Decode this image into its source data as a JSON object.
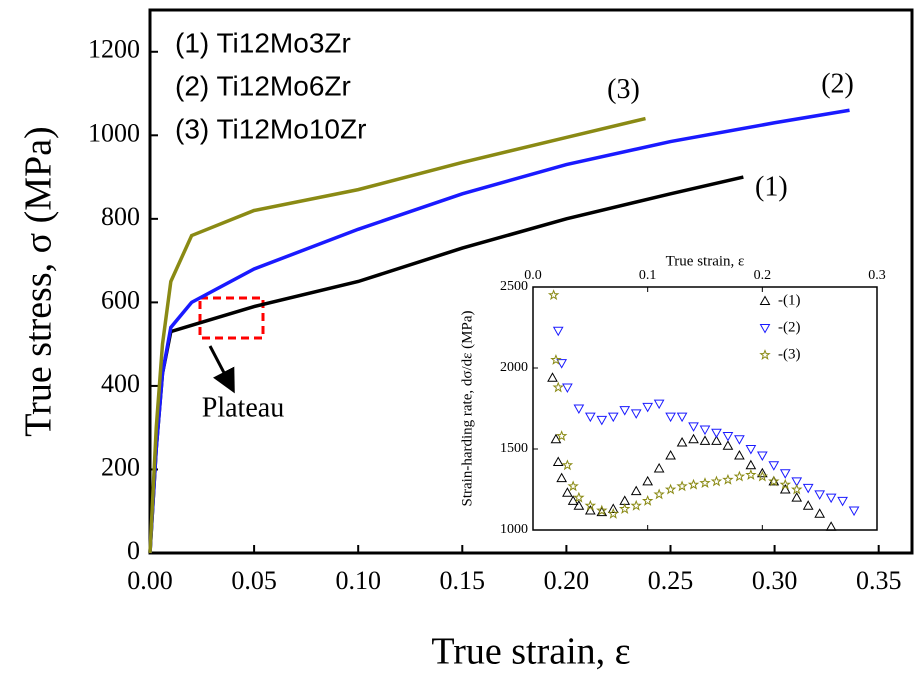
{
  "chart_data": [
    {
      "type": "line",
      "x_label": "True strain, ε",
      "y_label": "True stress, σ (MPa)",
      "xlim": [
        0,
        0.366
      ],
      "ylim": [
        0,
        1300
      ],
      "xticks": [
        {
          "value": 0,
          "label": "0.00"
        },
        {
          "value": 0.05,
          "label": "0.05"
        },
        {
          "value": 0.1,
          "label": "0.10"
        },
        {
          "value": 0.15,
          "label": "0.15"
        },
        {
          "value": 0.2,
          "label": "0.20"
        },
        {
          "value": 0.25,
          "label": "0.25"
        },
        {
          "value": 0.3,
          "label": "0.30"
        },
        {
          "value": 0.35,
          "label": "0.35"
        }
      ],
      "yticks": [
        0,
        200,
        400,
        600,
        800,
        1000,
        1200
      ],
      "series": [
        {
          "name": "(1) Ti12Mo3Zr",
          "label": "(1)",
          "color": "#000000",
          "x": [
            0,
            0.003,
            0.006,
            0.01,
            0.02,
            0.05,
            0.1,
            0.15,
            0.2,
            0.25,
            0.285
          ],
          "values": [
            0,
            250,
            430,
            530,
            545,
            590,
            650,
            730,
            800,
            860,
            900
          ]
        },
        {
          "name": "(2) Ti12Mo6Zr",
          "label": "(2)",
          "color": "#1a1aff",
          "x": [
            0,
            0.003,
            0.006,
            0.01,
            0.02,
            0.05,
            0.1,
            0.15,
            0.2,
            0.25,
            0.3,
            0.336
          ],
          "values": [
            0,
            250,
            430,
            540,
            600,
            680,
            775,
            860,
            930,
            985,
            1030,
            1060
          ]
        },
        {
          "name": "(3) Ti12Mo10Zr",
          "label": "(3)",
          "color": "#8a8a14",
          "x": [
            0,
            0.003,
            0.006,
            0.01,
            0.02,
            0.05,
            0.1,
            0.15,
            0.2,
            0.238
          ],
          "values": [
            0,
            300,
            500,
            650,
            760,
            820,
            870,
            935,
            995,
            1040
          ]
        }
      ],
      "annotations": [
        "Plateau"
      ]
    },
    {
      "type": "scatter",
      "x_label": "True strain, ε",
      "y_label": "Strain-harding rate, dσ/dε (MPa)",
      "xlim": [
        0,
        0.3
      ],
      "ylim": [
        1000,
        2500
      ],
      "xticks": [
        {
          "value": 0,
          "label": "0.0"
        },
        {
          "value": 0.1,
          "label": "0.1"
        },
        {
          "value": 0.2,
          "label": "0.2"
        },
        {
          "value": 0.3,
          "label": "0.3"
        }
      ],
      "yticks": [
        1000,
        1500,
        2000,
        2500
      ],
      "series": [
        {
          "name": "-(1)",
          "marker": "triangle-up",
          "color": "#000000",
          "x": [
            0.017,
            0.02,
            0.022,
            0.025,
            0.03,
            0.035,
            0.04,
            0.05,
            0.06,
            0.07,
            0.08,
            0.09,
            0.1,
            0.11,
            0.12,
            0.13,
            0.14,
            0.15,
            0.16,
            0.17,
            0.18,
            0.19,
            0.2,
            0.21,
            0.22,
            0.23,
            0.24,
            0.25,
            0.26
          ],
          "values": [
            1940,
            1560,
            1420,
            1320,
            1230,
            1180,
            1150,
            1120,
            1110,
            1130,
            1180,
            1240,
            1300,
            1380,
            1460,
            1540,
            1560,
            1550,
            1550,
            1520,
            1460,
            1400,
            1350,
            1300,
            1250,
            1200,
            1150,
            1100,
            1020
          ]
        },
        {
          "name": "-(2)",
          "marker": "triangle-down",
          "color": "#1a1aff",
          "x": [
            0.022,
            0.025,
            0.03,
            0.04,
            0.05,
            0.06,
            0.07,
            0.08,
            0.09,
            0.1,
            0.11,
            0.12,
            0.13,
            0.14,
            0.15,
            0.16,
            0.17,
            0.18,
            0.19,
            0.2,
            0.21,
            0.22,
            0.23,
            0.24,
            0.25,
            0.26,
            0.27,
            0.28
          ],
          "values": [
            2230,
            2030,
            1880,
            1750,
            1700,
            1680,
            1700,
            1740,
            1720,
            1760,
            1780,
            1700,
            1700,
            1640,
            1620,
            1600,
            1580,
            1560,
            1500,
            1460,
            1400,
            1350,
            1300,
            1260,
            1220,
            1200,
            1180,
            1120
          ]
        },
        {
          "name": "-(3)",
          "marker": "star",
          "color": "#8a8a14",
          "x": [
            0.018,
            0.02,
            0.022,
            0.025,
            0.03,
            0.035,
            0.04,
            0.05,
            0.06,
            0.07,
            0.08,
            0.09,
            0.1,
            0.11,
            0.12,
            0.13,
            0.14,
            0.15,
            0.16,
            0.17,
            0.18,
            0.19,
            0.2,
            0.21,
            0.22,
            0.23
          ],
          "values": [
            2450,
            2050,
            1880,
            1580,
            1400,
            1270,
            1200,
            1150,
            1120,
            1100,
            1130,
            1150,
            1180,
            1220,
            1250,
            1270,
            1280,
            1290,
            1300,
            1310,
            1330,
            1340,
            1330,
            1300,
            1280,
            1250
          ]
        }
      ]
    }
  ]
}
